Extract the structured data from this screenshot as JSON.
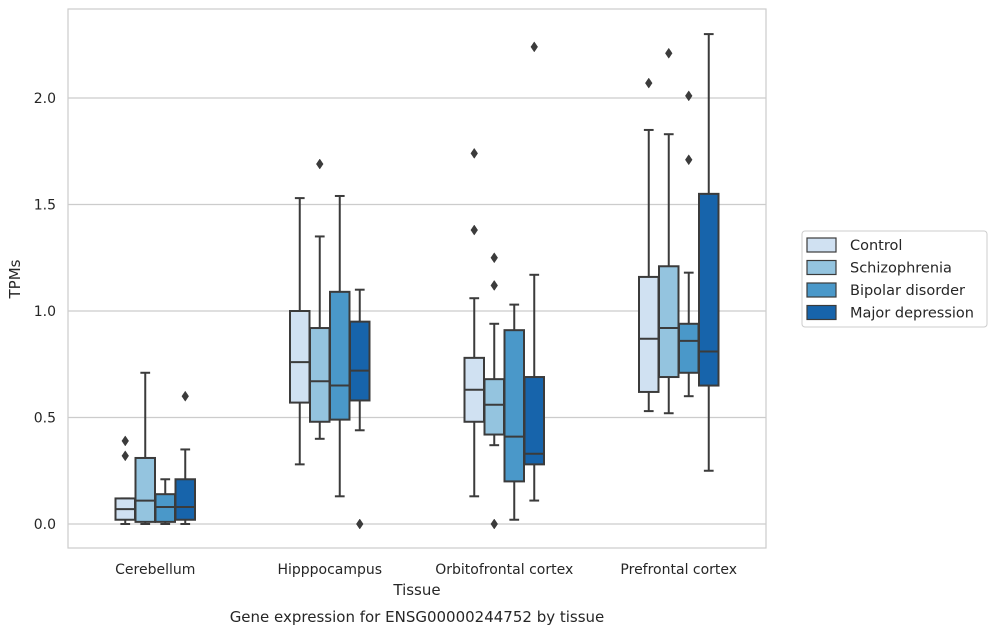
{
  "caption": "Gene expression for ENSG00000244752 by tissue",
  "chart_data": {
    "type": "box",
    "title": "",
    "xlabel": "Tissue",
    "ylabel": "TPMs",
    "ylim": [
      -0.11,
      2.43
    ],
    "yticks": [
      0.0,
      0.5,
      1.0,
      1.5,
      2.0
    ],
    "ytick_labels": [
      "0.0",
      "0.5",
      "1.0",
      "1.5",
      "2.0"
    ],
    "grid": "horizontal",
    "legend_position": "right",
    "categories": [
      "Cerebellum",
      "Hipppocampus",
      "Orbitofrontal cortex",
      "Prefrontal cortex"
    ],
    "series": [
      {
        "name": "Control",
        "color": "#d0e1f2",
        "boxes": [
          {
            "whislo": 0.0,
            "q1": 0.02,
            "med": 0.07,
            "q3": 0.12,
            "whishi": 0.12,
            "fliers": [
              0.39,
              0.32
            ]
          },
          {
            "whislo": 0.28,
            "q1": 0.57,
            "med": 0.76,
            "q3": 1.0,
            "whishi": 1.53,
            "fliers": []
          },
          {
            "whislo": 0.13,
            "q1": 0.48,
            "med": 0.63,
            "q3": 0.78,
            "whishi": 1.06,
            "fliers": [
              1.74,
              1.38
            ]
          },
          {
            "whislo": 0.53,
            "q1": 0.62,
            "med": 0.87,
            "q3": 1.16,
            "whishi": 1.85,
            "fliers": [
              2.07
            ]
          }
        ]
      },
      {
        "name": "Schizophrenia",
        "color": "#94c4df",
        "boxes": [
          {
            "whislo": 0.0,
            "q1": 0.01,
            "med": 0.11,
            "q3": 0.31,
            "whishi": 0.71,
            "fliers": []
          },
          {
            "whislo": 0.4,
            "q1": 0.48,
            "med": 0.67,
            "q3": 0.92,
            "whishi": 1.35,
            "fliers": [
              1.69
            ]
          },
          {
            "whislo": 0.37,
            "q1": 0.42,
            "med": 0.56,
            "q3": 0.68,
            "whishi": 0.94,
            "fliers": [
              1.25,
              1.12,
              0.0
            ]
          },
          {
            "whislo": 0.52,
            "q1": 0.69,
            "med": 0.92,
            "q3": 1.21,
            "whishi": 1.83,
            "fliers": [
              2.21
            ]
          }
        ]
      },
      {
        "name": "Bipolar disorder",
        "color": "#4a98c9",
        "boxes": [
          {
            "whislo": 0.0,
            "q1": 0.01,
            "med": 0.08,
            "q3": 0.14,
            "whishi": 0.21,
            "fliers": []
          },
          {
            "whislo": 0.13,
            "q1": 0.49,
            "med": 0.65,
            "q3": 1.09,
            "whishi": 1.54,
            "fliers": []
          },
          {
            "whislo": 0.02,
            "q1": 0.2,
            "med": 0.41,
            "q3": 0.91,
            "whishi": 1.03,
            "fliers": []
          },
          {
            "whislo": 0.6,
            "q1": 0.71,
            "med": 0.86,
            "q3": 0.94,
            "whishi": 1.18,
            "fliers": [
              2.01,
              1.71
            ]
          }
        ]
      },
      {
        "name": "Major depression",
        "color": "#1764ab",
        "boxes": [
          {
            "whislo": 0.0,
            "q1": 0.02,
            "med": 0.08,
            "q3": 0.21,
            "whishi": 0.35,
            "fliers": [
              0.6
            ]
          },
          {
            "whislo": 0.44,
            "q1": 0.58,
            "med": 0.72,
            "q3": 0.95,
            "whishi": 1.1,
            "fliers": [
              0.0
            ]
          },
          {
            "whislo": 0.11,
            "q1": 0.28,
            "med": 0.33,
            "q3": 0.69,
            "whishi": 1.17,
            "fliers": [
              2.24
            ]
          },
          {
            "whislo": 0.25,
            "q1": 0.65,
            "med": 0.81,
            "q3": 1.55,
            "whishi": 2.3,
            "fliers": []
          }
        ]
      }
    ]
  }
}
